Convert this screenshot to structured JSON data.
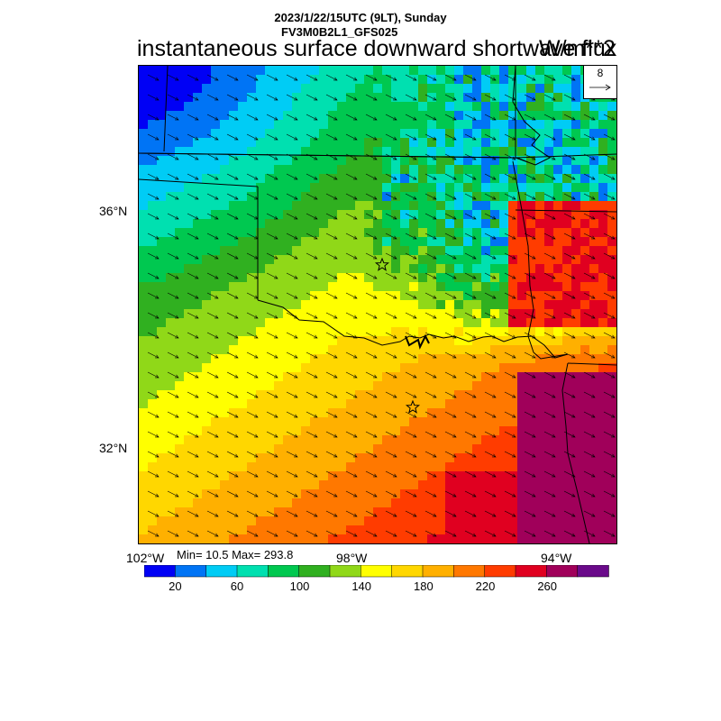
{
  "header": {
    "line1": "2023/1/22/15UTC (9LT), Sunday",
    "line2": "FV3M0B2L1_GFS025",
    "title": "instantaneous surface downward shortwave flux",
    "units": "W/m**2"
  },
  "reference_vector": {
    "label": "8"
  },
  "lat_labels": [
    {
      "text": "36°N"
    },
    {
      "text": "32°N"
    }
  ],
  "lon_labels": [
    {
      "text": "102°W"
    },
    {
      "text": "98°W"
    },
    {
      "text": "94°W"
    }
  ],
  "stats": {
    "text": "Min= 10.5 Max= 293.8",
    "min": 10.5,
    "max": 293.8
  },
  "colorbar": {
    "colors": [
      "#0000f5",
      "#0074f5",
      "#00ccf5",
      "#00e0b0",
      "#00c850",
      "#30b020",
      "#90d818",
      "#ffff00",
      "#ffd700",
      "#ffb000",
      "#ff7800",
      "#ff3c00",
      "#e00020",
      "#a0005a",
      "#6a0a8a"
    ],
    "tick_labels": [
      "20",
      "60",
      "100",
      "140",
      "180",
      "220",
      "260"
    ]
  },
  "map": {
    "palette_values": [
      10,
      30,
      50,
      70,
      90,
      110,
      130,
      150,
      170,
      190,
      210,
      230,
      250,
      270,
      290
    ],
    "markers": [
      {
        "name": "star-marker-north"
      },
      {
        "name": "star-marker-south"
      }
    ]
  }
}
